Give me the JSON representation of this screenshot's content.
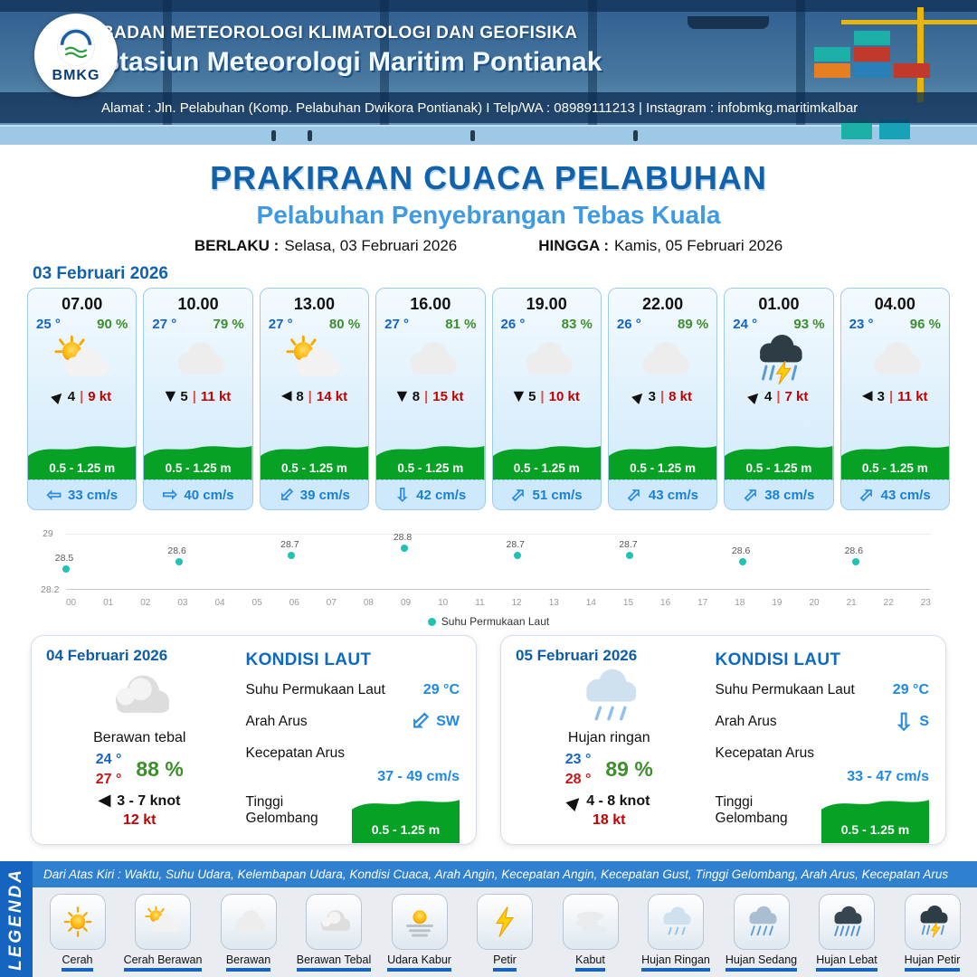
{
  "header": {
    "logo_text": "BMKG",
    "org_line": "BADAN METEOROLOGI KLIMATOLOGI DAN GEOFISIKA",
    "station_line": "Stasiun Meteorologi Maritim Pontianak",
    "address_line": "Alamat : Jln. Pelabuhan (Komp. Pelabuhan Dwikora Pontianak) I Telp/WA : 08989111213 | Instagram : infobmkg.maritimkalbar"
  },
  "title": {
    "main": "PRAKIRAAN CUACA PELABUHAN",
    "subtitle": "Pelabuhan Penyebrangan Tebas Kuala",
    "valid_from_label": "BERLAKU :",
    "valid_from": "Selasa, 03 Februari 2026",
    "valid_to_label": "HINGGA :",
    "valid_to": "Kamis, 05 Februari 2026"
  },
  "hourly": {
    "date": "03 Februari 2026",
    "cards": [
      {
        "time": "07.00",
        "temp": "25 °",
        "rh": "90 %",
        "icon_ref": "#i-partly",
        "wind_rot": -45,
        "wind": "4",
        "sep": "|",
        "gust": "9 kt",
        "wave": "0.5 - 1.25 m",
        "cur_rot": 180,
        "current": "33 cm/s"
      },
      {
        "time": "10.00",
        "temp": "27 °",
        "rh": "79 %",
        "icon_ref": "#i-cloud",
        "wind_rot": 90,
        "wind": "5",
        "sep": "|",
        "gust": "11 kt",
        "wave": "0.5 - 1.25 m",
        "cur_rot": 0,
        "current": "40 cm/s"
      },
      {
        "time": "13.00",
        "temp": "27 °",
        "rh": "80 %",
        "icon_ref": "#i-partly",
        "wind_rot": 180,
        "wind": "8",
        "sep": "|",
        "gust": "14 kt",
        "wave": "0.5 - 1.25 m",
        "cur_rot": 135,
        "current": "39 cm/s"
      },
      {
        "time": "16.00",
        "temp": "27 °",
        "rh": "81 %",
        "icon_ref": "#i-cloud",
        "wind_rot": 90,
        "wind": "8",
        "sep": "|",
        "gust": "15 kt",
        "wave": "0.5 - 1.25 m",
        "cur_rot": 90,
        "current": "42 cm/s"
      },
      {
        "time": "19.00",
        "temp": "26 °",
        "rh": "83 %",
        "icon_ref": "#i-cloud",
        "wind_rot": 90,
        "wind": "5",
        "sep": "|",
        "gust": "10 kt",
        "wave": "0.5 - 1.25 m",
        "cur_rot": -45,
        "current": "51 cm/s"
      },
      {
        "time": "22.00",
        "temp": "26 °",
        "rh": "89 %",
        "icon_ref": "#i-cloud",
        "wind_rot": -45,
        "wind": "3",
        "sep": "|",
        "gust": "8 kt",
        "wave": "0.5 - 1.25 m",
        "cur_rot": -45,
        "current": "43 cm/s"
      },
      {
        "time": "01.00",
        "temp": "24 °",
        "rh": "93 %",
        "icon_ref": "#i-thunderrain",
        "wind_rot": -45,
        "wind": "4",
        "sep": "|",
        "gust": "7 kt",
        "wave": "0.5 - 1.25 m",
        "cur_rot": -45,
        "current": "38 cm/s"
      },
      {
        "time": "04.00",
        "temp": "23 °",
        "rh": "96 %",
        "icon_ref": "#i-cloud",
        "wind_rot": 180,
        "wind": "3",
        "sep": "|",
        "gust": "11 kt",
        "wave": "0.5 - 1.25 m",
        "cur_rot": -45,
        "current": "43 cm/s"
      }
    ]
  },
  "chart_data": {
    "type": "scatter",
    "title": "",
    "legend_label": "Suhu Permukaan Laut",
    "x": [
      0,
      3,
      6,
      9,
      12,
      15,
      18,
      21
    ],
    "values": [
      28.5,
      28.6,
      28.7,
      28.8,
      28.7,
      28.7,
      28.6,
      28.6
    ],
    "xlim": [
      0,
      23
    ],
    "ylim": [
      28.2,
      29.0
    ],
    "y_ticks": [
      "29",
      "28.2"
    ],
    "x_ticks": [
      "00",
      "01",
      "02",
      "03",
      "04",
      "05",
      "06",
      "07",
      "08",
      "09",
      "10",
      "11",
      "12",
      "13",
      "14",
      "15",
      "16",
      "17",
      "18",
      "19",
      "20",
      "21",
      "22",
      "23"
    ],
    "dot_color": "#1fc2b3",
    "grid": false,
    "legend_position": "bottom-center"
  },
  "daily": [
    {
      "date": "04 Februari 2026",
      "icon_ref": "#i-cloudthick",
      "condition": "Berawan tebal",
      "temp_min": "24 °",
      "temp_max": "27 °",
      "rh": "88 %",
      "wind_rot": 180,
      "wind_range": "3  - 7 knot",
      "gust": "12 kt",
      "sea": {
        "heading": "KONDISI LAUT",
        "sst_label": "Suhu Permukaan Laut",
        "sst": "29 °C",
        "dir_label": "Arah Arus",
        "dir": "SW",
        "dir_rot": 135,
        "speed_label": "Kecepatan Arus",
        "speed": "37 - 49 cm/s",
        "wave_label": "Tinggi Gelombang",
        "wave": "0.5 - 1.25 m"
      }
    },
    {
      "date": "05 Februari 2026",
      "icon_ref": "#i-lightrain",
      "condition": "Hujan ringan",
      "temp_min": "23 °",
      "temp_max": "28 °",
      "rh": "89 %",
      "wind_rot": -45,
      "wind_range": "4  - 8 knot",
      "gust": "18 kt",
      "sea": {
        "heading": "KONDISI LAUT",
        "sst_label": "Suhu Permukaan Laut",
        "sst": "29 °C",
        "dir_label": "Arah Arus",
        "dir": "S",
        "dir_rot": 90,
        "speed_label": "Kecepatan Arus",
        "speed": "33 - 47 cm/s",
        "wave_label": "Tinggi Gelombang",
        "wave": "0.5 - 1.25 m"
      }
    }
  ],
  "legend": {
    "title": "LEGENDA",
    "description": "Dari Atas Kiri : Waktu, Suhu Udara, Kelembapan Udara, Kondisi Cuaca, Arah Angin, Kecepatan Angin, Kecepatan Gust, Tinggi Gelombang, Arah Arus, Kecepatan Arus",
    "items": [
      {
        "label": "Cerah",
        "icon_ref": "#i-sun"
      },
      {
        "label": "Cerah Berawan",
        "icon_ref": "#i-partly"
      },
      {
        "label": "Berawan",
        "icon_ref": "#i-cloud"
      },
      {
        "label": "Berawan Tebal",
        "icon_ref": "#i-cloudthick"
      },
      {
        "label": "Udara Kabur",
        "icon_ref": "#i-haze"
      },
      {
        "label": "Petir",
        "icon_ref": "#i-bolt"
      },
      {
        "label": "Kabut",
        "icon_ref": "#i-fog"
      },
      {
        "label": "Hujan Ringan",
        "icon_ref": "#i-lightrain"
      },
      {
        "label": "Hujan Sedang",
        "icon_ref": "#i-medrain"
      },
      {
        "label": "Hujan Lebat",
        "icon_ref": "#i-heavyrain"
      },
      {
        "label": "Hujan Petir",
        "icon_ref": "#i-thunderrain"
      }
    ]
  }
}
